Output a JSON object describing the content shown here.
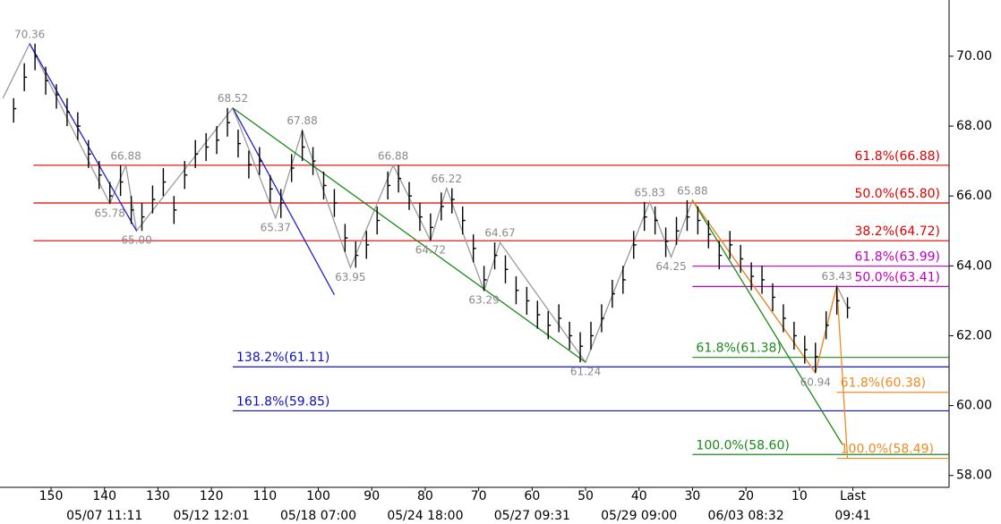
{
  "chart_data": {
    "type": "ohlc",
    "xlim": [
      159.55,
      -18
    ],
    "ylim": [
      57.66,
      71.61
    ],
    "xticks": [
      150,
      140,
      130,
      120,
      110,
      100,
      90,
      80,
      70,
      60,
      50,
      40,
      30,
      20,
      10,
      {
        "value": 0,
        "label": "Last"
      }
    ],
    "date_labels": [
      {
        "value": 140,
        "label": "05/07 11:11"
      },
      {
        "value": 120,
        "label": "05/12 12:01"
      },
      {
        "value": 100,
        "label": "05/18 07:00"
      },
      {
        "value": 80,
        "label": "05/24 18:00"
      },
      {
        "value": 60,
        "label": "05/27 09:31"
      },
      {
        "value": 40,
        "label": "05/29 09:00"
      },
      {
        "value": 20,
        "label": "06/03 08:32"
      },
      {
        "value": 0,
        "label": "09:41"
      }
    ],
    "yticks": [
      {
        "value": 58,
        "label": "58.00"
      },
      {
        "value": 60,
        "label": "60.00"
      },
      {
        "value": 62,
        "label": "62.00"
      },
      {
        "value": 64,
        "label": "64.00"
      },
      {
        "value": 66,
        "label": "66.00"
      },
      {
        "value": 68,
        "label": "68.00"
      },
      {
        "value": 70,
        "label": "70.00"
      }
    ],
    "bar_color": "#000000",
    "x": [
      157,
      155,
      153,
      151,
      149,
      147,
      145,
      143,
      141,
      139,
      137,
      135,
      133,
      131,
      129,
      127,
      125,
      123,
      121,
      119,
      117,
      115,
      113,
      111,
      109,
      107,
      105,
      103,
      101,
      99,
      97,
      95,
      93,
      91,
      89,
      87,
      85,
      83,
      81,
      79,
      77,
      75,
      73,
      71,
      69,
      67,
      65,
      63,
      61,
      59,
      57,
      55,
      53,
      51,
      49,
      47,
      45,
      43,
      41,
      39,
      37,
      35,
      33,
      31,
      29,
      27,
      25,
      23,
      21,
      19,
      17,
      15,
      13,
      11,
      9,
      7,
      5,
      3,
      1
    ],
    "high": [
      68.8,
      69.8,
      70.36,
      69.7,
      69.2,
      68.8,
      68.4,
      67.6,
      67.0,
      66.4,
      66.88,
      66.0,
      65.8,
      66.3,
      66.8,
      66.0,
      67.0,
      67.6,
      67.8,
      68.0,
      68.52,
      67.9,
      67.3,
      67.4,
      66.6,
      66.2,
      67.2,
      67.88,
      67.4,
      66.7,
      66.2,
      65.2,
      64.7,
      65.0,
      65.7,
      66.7,
      66.88,
      66.4,
      65.8,
      65.5,
      66.1,
      66.22,
      65.7,
      64.9,
      64.0,
      64.67,
      64.3,
      63.7,
      63.4,
      63.0,
      62.7,
      62.9,
      62.4,
      62.1,
      62.4,
      62.9,
      63.6,
      64.0,
      65.0,
      65.83,
      65.7,
      65.1,
      65.4,
      65.88,
      65.7,
      65.3,
      64.7,
      65.0,
      64.6,
      64.1,
      64.0,
      63.5,
      62.9,
      62.4,
      62.0,
      61.8,
      62.7,
      63.43,
      63.1
    ],
    "low": [
      68.1,
      69.0,
      69.6,
      68.9,
      68.5,
      68.0,
      67.6,
      66.8,
      66.2,
      65.78,
      66.0,
      65.2,
      65.0,
      65.5,
      66.0,
      65.2,
      66.2,
      66.8,
      67.0,
      67.2,
      67.7,
      67.1,
      66.5,
      66.6,
      65.8,
      65.37,
      66.4,
      67.0,
      66.6,
      65.9,
      65.4,
      64.4,
      63.95,
      64.2,
      64.9,
      65.9,
      66.1,
      65.6,
      65.0,
      64.72,
      65.3,
      65.5,
      64.9,
      64.1,
      63.29,
      63.9,
      63.5,
      62.9,
      62.6,
      62.2,
      61.9,
      62.1,
      61.6,
      61.24,
      61.6,
      62.1,
      62.8,
      63.2,
      64.2,
      65.0,
      64.9,
      64.25,
      64.6,
      65.0,
      64.9,
      64.5,
      63.9,
      64.2,
      63.8,
      63.3,
      63.2,
      62.7,
      62.1,
      61.6,
      61.2,
      60.94,
      61.9,
      62.6,
      62.5
    ],
    "close": [
      68.5,
      69.4,
      70.0,
      69.3,
      68.9,
      68.4,
      68.0,
      67.2,
      66.6,
      66.0,
      66.4,
      65.6,
      65.4,
      65.9,
      66.4,
      65.6,
      66.6,
      67.2,
      67.4,
      67.6,
      68.1,
      67.5,
      66.9,
      67.0,
      66.2,
      65.8,
      66.8,
      67.4,
      67.0,
      66.3,
      65.8,
      64.8,
      64.3,
      64.6,
      65.3,
      66.3,
      66.5,
      66.0,
      65.4,
      65.1,
      65.7,
      65.9,
      65.3,
      64.5,
      63.6,
      64.3,
      63.9,
      63.3,
      63.0,
      62.6,
      62.3,
      62.5,
      62.0,
      61.7,
      62.0,
      62.5,
      63.2,
      63.6,
      64.6,
      65.4,
      65.3,
      64.7,
      65.0,
      65.4,
      65.3,
      64.9,
      64.3,
      64.6,
      64.2,
      63.7,
      63.6,
      63.1,
      62.5,
      62.0,
      61.6,
      61.4,
      62.3,
      63.0,
      62.8
    ],
    "zigzag": {
      "color": "#9a9a9a",
      "x": [
        159,
        154,
        139,
        136,
        134,
        116,
        108,
        103,
        94,
        86,
        79,
        76,
        69,
        66,
        50,
        38,
        34,
        30,
        7,
        3,
        1
      ],
      "values": [
        68.8,
        70.36,
        65.78,
        66.88,
        65.0,
        68.52,
        65.37,
        67.88,
        63.95,
        66.88,
        64.72,
        66.22,
        63.29,
        64.67,
        61.24,
        65.83,
        64.25,
        65.88,
        60.94,
        63.43,
        62.8
      ],
      "value_labels": [
        null,
        "70.36",
        "65.78",
        "66.88",
        "65.00",
        "68.52",
        "65.37",
        "67.88",
        "63.95",
        "66.88",
        "64.72",
        "66.22",
        "63.29",
        "64.67",
        "61.24",
        "65.83",
        "64.25",
        "65.88",
        "60.94",
        "63.43",
        null
      ]
    },
    "trendlines": [
      {
        "color": "#2020d0",
        "x": [
          154,
          134
        ],
        "values": [
          70.36,
          65.0
        ]
      },
      {
        "color": "#2020d0",
        "x": [
          116,
          97
        ],
        "values": [
          68.52,
          63.17
        ]
      },
      {
        "color": "#1a8a1a",
        "x": [
          116,
          50
        ],
        "values": [
          68.52,
          61.24
        ]
      },
      {
        "color": "#1a8a1a",
        "x": [
          30,
          2
        ],
        "values": [
          65.88,
          58.9
        ]
      },
      {
        "color": "#f08a20",
        "x": [
          30,
          7,
          3,
          1
        ],
        "values": [
          65.88,
          60.94,
          63.43,
          58.49
        ]
      }
    ],
    "levels": [
      {
        "label": "61.8%(66.88)",
        "value": 66.88,
        "color": "#e00000",
        "start": 153.3,
        "label_align": "right"
      },
      {
        "label": "50.0%(65.80)",
        "value": 65.8,
        "color": "#e00000",
        "start": 153.3,
        "label_align": "right"
      },
      {
        "label": "38.2%(64.72)",
        "value": 64.72,
        "color": "#e00000",
        "start": 153.3,
        "label_align": "right"
      },
      {
        "label": "61.8%(63.99)",
        "value": 63.99,
        "color": "#c000c0",
        "start": 30,
        "label_align": "right"
      },
      {
        "label": "50.0%(63.41)",
        "value": 63.41,
        "color": "#c000c0",
        "start": 30,
        "label_align": "right"
      },
      {
        "label": "61.8%(61.38)",
        "value": 61.38,
        "color": "#1a8a1a",
        "start": 30,
        "label_align": "left"
      },
      {
        "label": "138.2%(61.11)",
        "value": 61.11,
        "color": "#1010c0",
        "start": 116,
        "label_align": "left"
      },
      {
        "label": "61.8%(60.38)",
        "value": 60.38,
        "color": "#f08a20",
        "start": 3,
        "label_align": "left"
      },
      {
        "label": "161.8%(59.85)",
        "value": 59.85,
        "color": "#1010c0",
        "start": 116,
        "label_align": "left"
      },
      {
        "label": "100.0%(58.60)",
        "value": 58.6,
        "color": "#1a8a1a",
        "start": 30,
        "label_align": "left"
      },
      {
        "label": "100.0%(58.49)",
        "value": 58.49,
        "color": "#f08a20",
        "start": 3,
        "label_align": "left"
      }
    ]
  }
}
